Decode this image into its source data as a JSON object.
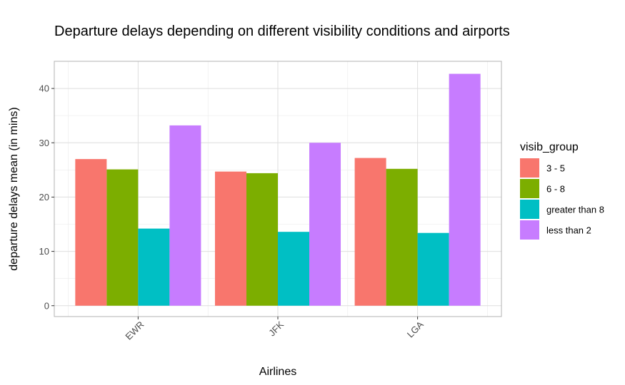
{
  "chart_data": {
    "type": "bar",
    "title": "Departure delays depending on different visibility conditions and airports",
    "xlabel": "Airlines",
    "ylabel": "departure delays mean (in mins)",
    "categories": [
      "EWR",
      "JFK",
      "LGA"
    ],
    "ylim": [
      -2,
      45
    ],
    "yticks": [
      0,
      10,
      20,
      30,
      40
    ],
    "grid": true,
    "legend": {
      "title": "visib_group",
      "position": "right"
    },
    "series": [
      {
        "name": "3 - 5",
        "color": "#F8766D",
        "values": [
          27.0,
          24.7,
          27.2
        ]
      },
      {
        "name": "6 - 8",
        "color": "#7CAE00",
        "values": [
          25.1,
          24.4,
          25.2
        ]
      },
      {
        "name": "greater than 8",
        "color": "#00BFC4",
        "values": [
          14.2,
          13.6,
          13.4
        ]
      },
      {
        "name": "less than 2",
        "color": "#C77CFF",
        "values": [
          33.2,
          30.0,
          42.7
        ]
      }
    ]
  }
}
